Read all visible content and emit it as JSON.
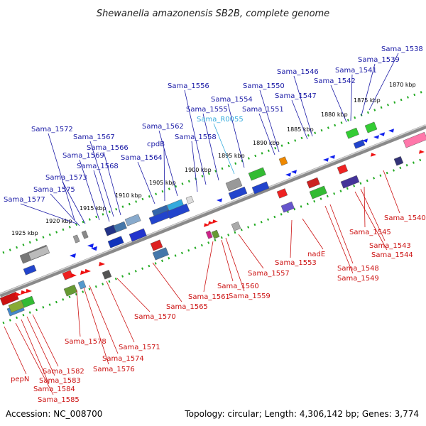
{
  "title": "Shewanella amazonensis SB2B, complete genome",
  "accession": "Accession: NC_008700",
  "topology": "Topology: circular; Length: 4,306,142 bp; Genes: 3,774",
  "colors": {
    "top_label": "#1a1aa6",
    "bottom_label": "#cc1111",
    "rna_label": "#33aadd"
  },
  "kbp_ticks": [
    "1925 kbp",
    "1920 kbp",
    "1915 kbp",
    "1910 kbp",
    "1905 kbp",
    "1900 kbp",
    "1895 kbp",
    "1890 kbp",
    "1885 kbp",
    "1880 kbp",
    "1875 kbp",
    "1870 kbp"
  ],
  "top_genes": [
    "Sama_1577",
    "Sama_1575",
    "Sama_1573",
    "Sama_1572",
    "Sama_1569",
    "Sama_1568",
    "Sama_1567",
    "Sama_1566",
    "Sama_1564",
    "cpdB",
    "Sama_1562",
    "Sama_1558",
    "Sama_1556",
    "Sama_1555",
    "Sama_R0055",
    "Sama_1554",
    "Sama_1551",
    "Sama_1550",
    "Sama_1547",
    "Sama_1546",
    "Sama_1542",
    "Sama_1541",
    "Sama_1539",
    "Sama_1538"
  ],
  "bottom_genes": [
    "pepN",
    "Sama_1585",
    "Sama_1584",
    "Sama_1583",
    "Sama_1582",
    "Sama_1576",
    "Sama_1574",
    "Sama_1578",
    "Sama_1571",
    "Sama_1570",
    "Sama_1565",
    "Sama_1561",
    "Sama_1560",
    "Sama_1559",
    "Sama_1557",
    "Sama_1553",
    "nadE",
    "Sama_1549",
    "Sama_1548",
    "Sama_1544",
    "Sama_1543",
    "Sama_1545",
    "Sama_1540"
  ]
}
